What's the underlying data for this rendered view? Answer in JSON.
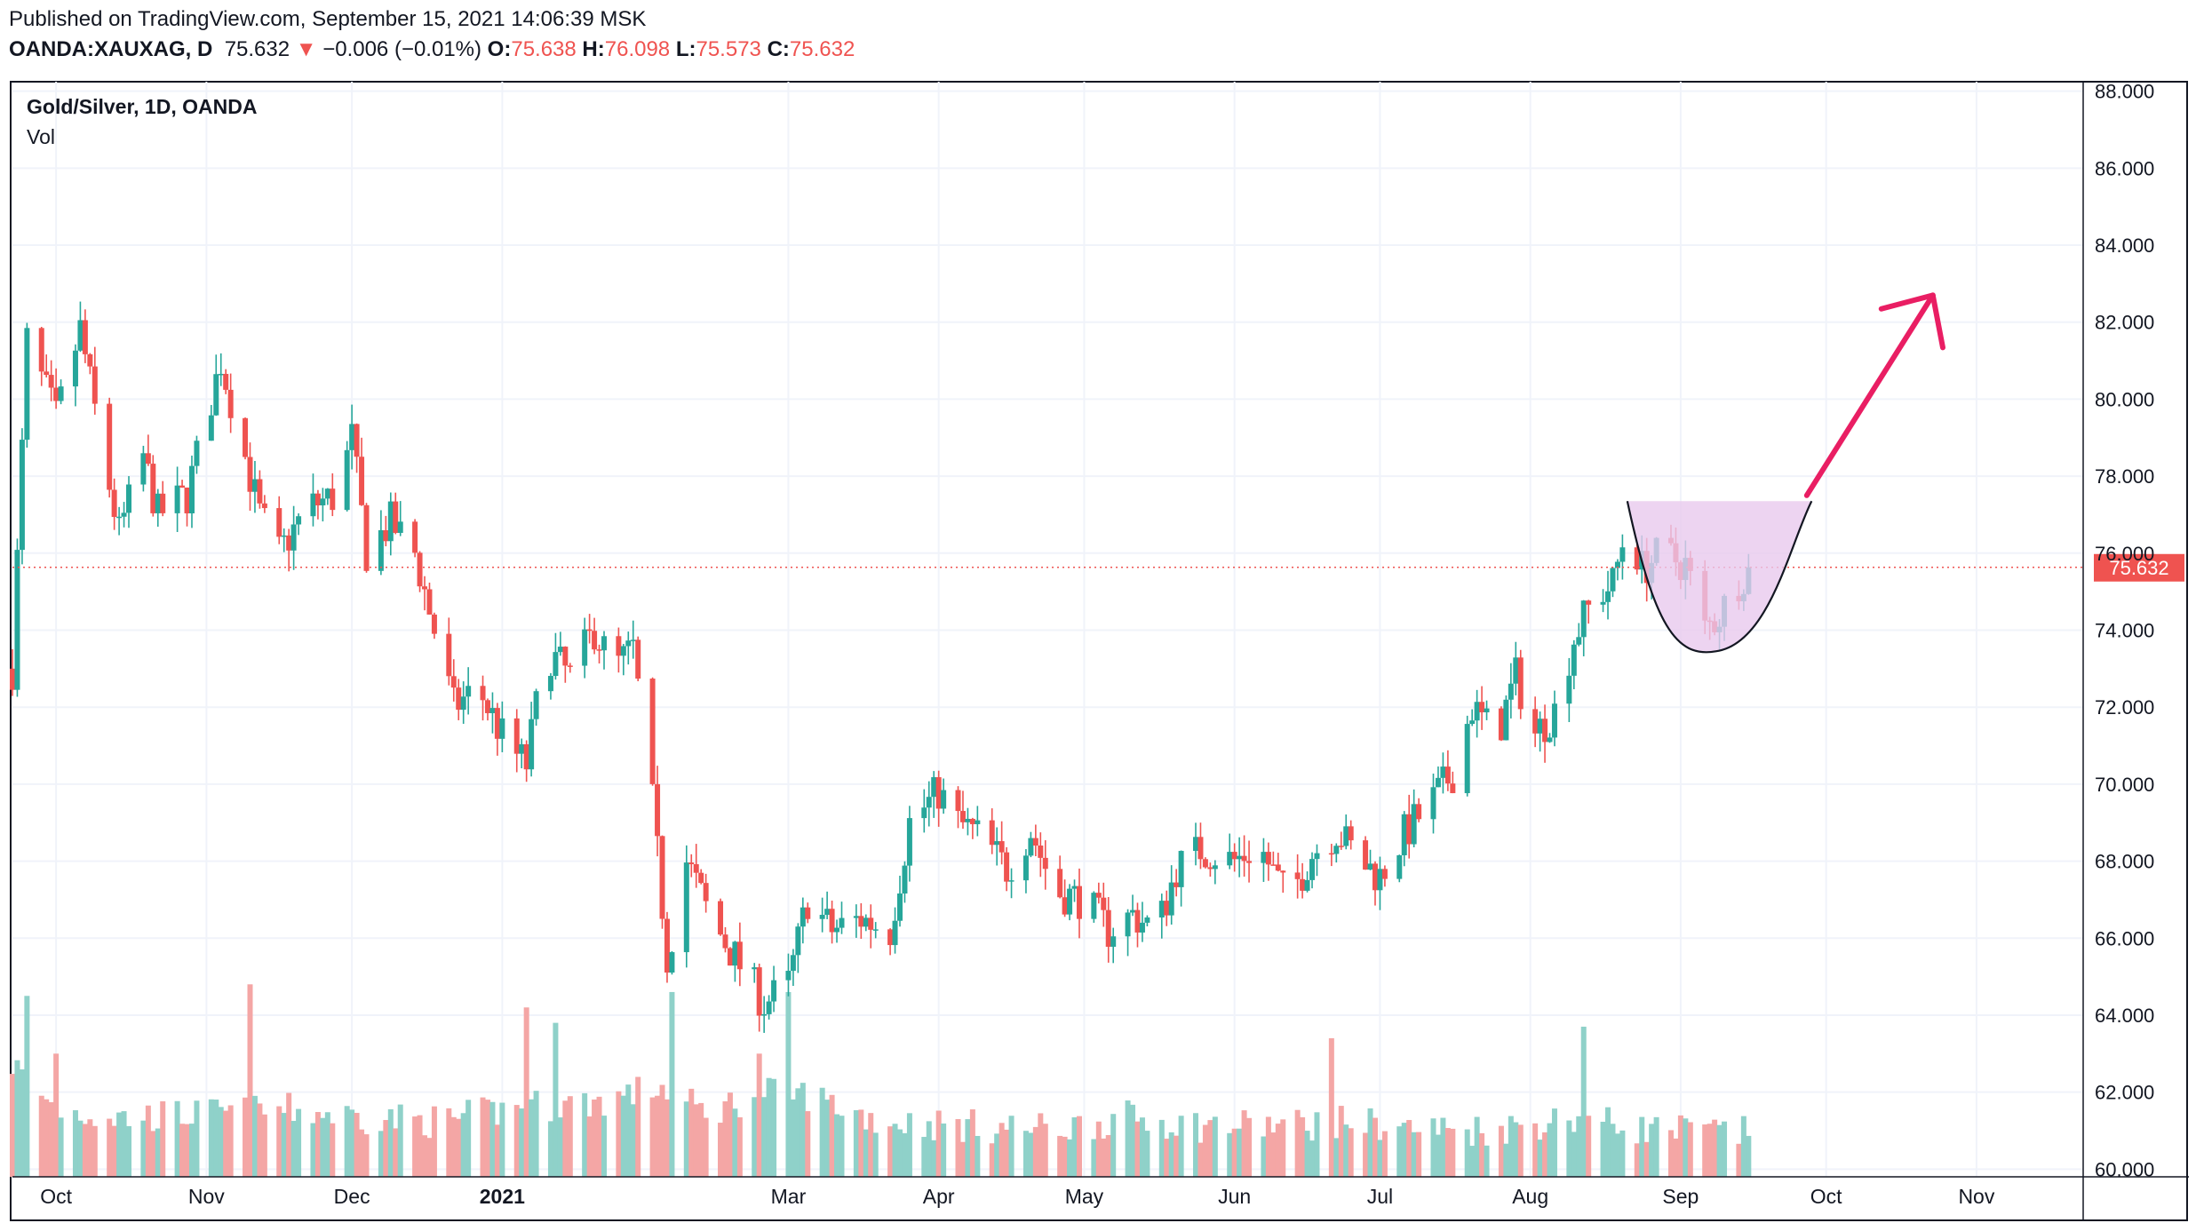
{
  "header": {
    "published": "Published on TradingView.com, September 15, 2021 14:06:39 MSK",
    "symbol": "OANDA:XAUXAG, D",
    "price": "75.632",
    "change": "−0.006 (−0.01%)",
    "o_label": "O:",
    "o_value": "75.638",
    "h_label": "H:",
    "h_value": "76.098",
    "l_label": "L:",
    "l_value": "75.573",
    "c_label": "C:",
    "c_value": "75.632"
  },
  "legend": {
    "title": "Gold/Silver, 1D, OANDA",
    "volume_label": "Vol"
  },
  "price_tag": "75.632",
  "colors": {
    "up": "#26a69a",
    "down": "#ef5350",
    "volume_up": "#8fd1c9",
    "volume_down": "#f4a6a5",
    "arrow": "#e91e63",
    "cup_fill": "#e9c9ee",
    "grid": "#f0f3fa"
  },
  "chart_data": {
    "type": "candlestick",
    "title": "Gold/Silver, 1D, OANDA",
    "yaxis": {
      "ticks": [
        "60.000",
        "62.000",
        "64.000",
        "66.000",
        "68.000",
        "70.000",
        "72.000",
        "74.000",
        "76.000",
        "78.000",
        "80.000",
        "82.000",
        "84.000",
        "86.000",
        "88.000"
      ],
      "range": [
        59.8,
        88.2
      ]
    },
    "xaxis": {
      "tick_labels": [
        "Oct",
        "Nov",
        "Dec",
        "2021",
        "Mar",
        "Apr",
        "May",
        "Jun",
        "Jul",
        "Aug",
        "Sep",
        "Oct",
        "Nov"
      ],
      "tick_dates": [
        "2020-10-01",
        "2020-11-01",
        "2020-12-01",
        "2021-01-01",
        "2021-03-01",
        "2021-04-01",
        "2021-05-01",
        "2021-06-01",
        "2021-07-01",
        "2021-08-01",
        "2021-09-01",
        "2021-10-01",
        "2021-11-01"
      ],
      "range": [
        "2020-09-22",
        "2021-11-23"
      ]
    },
    "last_price": 75.632,
    "close_path": [
      [
        "2020-09-22",
        73.0
      ],
      [
        "2020-09-25",
        81.5
      ],
      [
        "2020-10-01",
        79.5
      ],
      [
        "2020-10-06",
        81.8
      ],
      [
        "2020-10-10",
        79.0
      ],
      [
        "2020-10-14",
        76.5
      ],
      [
        "2020-10-19",
        78.5
      ],
      [
        "2020-10-22",
        77.0
      ],
      [
        "2020-10-28",
        77.5
      ],
      [
        "2020-11-01",
        79.5
      ],
      [
        "2020-11-04",
        81.0
      ],
      [
        "2020-11-08",
        79.0
      ],
      [
        "2020-11-12",
        77.0
      ],
      [
        "2020-11-16",
        76.0
      ],
      [
        "2020-11-22",
        77.2
      ],
      [
        "2020-11-28",
        77.5
      ],
      [
        "2020-12-01",
        79.0
      ],
      [
        "2020-12-04",
        76.0
      ],
      [
        "2020-12-09",
        76.8
      ],
      [
        "2020-12-14",
        76.0
      ],
      [
        "2020-12-18",
        74.0
      ],
      [
        "2020-12-22",
        72.0
      ],
      [
        "2020-12-27",
        72.5
      ],
      [
        "2021-01-02",
        71.0
      ],
      [
        "2021-01-06",
        70.5
      ],
      [
        "2021-01-10",
        73.5
      ],
      [
        "2021-01-15",
        72.8
      ],
      [
        "2021-01-20",
        74.0
      ],
      [
        "2021-01-24",
        73.0
      ],
      [
        "2021-01-28",
        73.5
      ],
      [
        "2021-02-01",
        69.5
      ],
      [
        "2021-02-04",
        65.5
      ],
      [
        "2021-02-08",
        68.0
      ],
      [
        "2021-02-13",
        66.5
      ],
      [
        "2021-02-18",
        65.5
      ],
      [
        "2021-02-24",
        64.3
      ],
      [
        "2021-03-01",
        64.8
      ],
      [
        "2021-03-05",
        67.0
      ],
      [
        "2021-03-10",
        66.2
      ],
      [
        "2021-03-16",
        66.5
      ],
      [
        "2021-03-22",
        66.2
      ],
      [
        "2021-03-26",
        69.0
      ],
      [
        "2021-04-01",
        69.8
      ],
      [
        "2021-04-05",
        69.0
      ],
      [
        "2021-04-10",
        68.6
      ],
      [
        "2021-04-15",
        67.8
      ],
      [
        "2021-04-20",
        68.8
      ],
      [
        "2021-04-25",
        67.2
      ],
      [
        "2021-05-01",
        67.0
      ],
      [
        "2021-05-06",
        66.2
      ],
      [
        "2021-05-11",
        66.6
      ],
      [
        "2021-05-16",
        66.2
      ],
      [
        "2021-05-20",
        67.8
      ],
      [
        "2021-05-25",
        68.3
      ],
      [
        "2021-06-01",
        68.0
      ],
      [
        "2021-06-06",
        68.4
      ],
      [
        "2021-06-12",
        67.0
      ],
      [
        "2021-06-17",
        68.2
      ],
      [
        "2021-06-22",
        68.8
      ],
      [
        "2021-06-27",
        68.0
      ],
      [
        "2021-07-01",
        67.6
      ],
      [
        "2021-07-06",
        68.7
      ],
      [
        "2021-07-12",
        69.6
      ],
      [
        "2021-07-16",
        70.3
      ],
      [
        "2021-07-20",
        72.0
      ],
      [
        "2021-07-25",
        71.2
      ],
      [
        "2021-07-29",
        72.8
      ],
      [
        "2021-08-02",
        71.3
      ],
      [
        "2021-08-06",
        71.9
      ],
      [
        "2021-08-10",
        73.8
      ],
      [
        "2021-08-14",
        74.8
      ],
      [
        "2021-08-18",
        75.2
      ],
      [
        "2021-08-21",
        76.8
      ],
      [
        "2021-08-24",
        75.6
      ],
      [
        "2021-08-28",
        76.0
      ],
      [
        "2021-09-02",
        75.7
      ],
      [
        "2021-09-06",
        74.0
      ],
      [
        "2021-09-09",
        74.4
      ],
      [
        "2021-09-13",
        75.3
      ],
      [
        "2021-09-15",
        75.632
      ]
    ],
    "volume_path": [
      [
        "2020-09-22",
        62.6
      ],
      [
        "2020-10-01",
        61.4
      ],
      [
        "2020-10-15",
        61.2
      ],
      [
        "2020-11-01",
        61.3
      ],
      [
        "2020-11-18",
        61.4
      ],
      [
        "2020-12-05",
        61.2
      ],
      [
        "2020-12-20",
        61.1
      ],
      [
        "2021-01-05",
        61.5
      ],
      [
        "2021-01-20",
        61.6
      ],
      [
        "2021-02-03",
        62.0
      ],
      [
        "2021-02-12",
        61.3
      ],
      [
        "2021-02-24",
        61.9
      ],
      [
        "2021-03-05",
        61.8
      ],
      [
        "2021-03-20",
        61.1
      ],
      [
        "2021-04-05",
        61.0
      ],
      [
        "2021-04-25",
        60.9
      ],
      [
        "2021-05-10",
        61.2
      ],
      [
        "2021-05-25",
        61.0
      ],
      [
        "2021-06-10",
        61.0
      ],
      [
        "2021-06-25",
        61.1
      ],
      [
        "2021-07-10",
        60.9
      ],
      [
        "2021-07-25",
        60.9
      ],
      [
        "2021-08-10",
        61.2
      ],
      [
        "2021-08-25",
        60.9
      ],
      [
        "2021-09-15",
        60.8
      ]
    ],
    "volume_spikes": [
      [
        "2020-09-25",
        64.5
      ],
      [
        "2020-10-01",
        63.0
      ],
      [
        "2020-11-07",
        64.3
      ],
      [
        "2020-11-10",
        64.8
      ],
      [
        "2021-01-06",
        64.2
      ],
      [
        "2021-01-12",
        63.8
      ],
      [
        "2021-02-05",
        64.6
      ],
      [
        "2021-02-07",
        62.5
      ],
      [
        "2021-02-23",
        63.0
      ],
      [
        "2021-03-01",
        64.6
      ],
      [
        "2021-05-15",
        62.8
      ],
      [
        "2021-06-21",
        63.4
      ],
      [
        "2021-08-12",
        63.7
      ]
    ],
    "annotations": [
      {
        "type": "cup_pattern",
        "from": "2021-08-21",
        "to": "2021-09-28",
        "rim": 77.35,
        "bottom": 73.45
      },
      {
        "type": "arrow",
        "from": [
          "2021-09-27",
          77.5
        ],
        "to": [
          "2021-10-23",
          82.7
        ]
      }
    ]
  }
}
